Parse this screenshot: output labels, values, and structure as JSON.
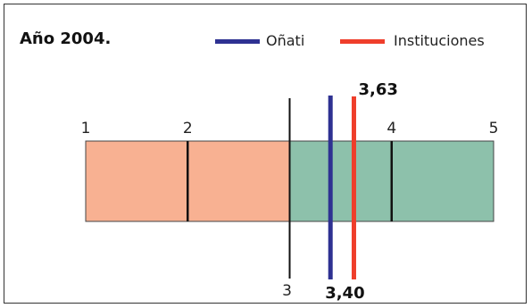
{
  "chart_data": {
    "type": "scale-markers",
    "title": "Año 2004.",
    "axis_ticks": [
      "1",
      "2",
      "3",
      "4",
      "5"
    ],
    "xlim": [
      1,
      5
    ],
    "bands": [
      {
        "from": 1,
        "to": 3,
        "color": "#f8b192"
      },
      {
        "from": 3,
        "to": 5,
        "color": "#8dc1ab"
      }
    ],
    "series": [
      {
        "name": "Oñati",
        "value": 3.4,
        "label": "3,40",
        "color": "#2e3192"
      },
      {
        "name": "Instituciones",
        "value": 3.63,
        "label": "3,63",
        "color": "#ef3e2b"
      }
    ],
    "grid": false,
    "legend": "top-right"
  }
}
